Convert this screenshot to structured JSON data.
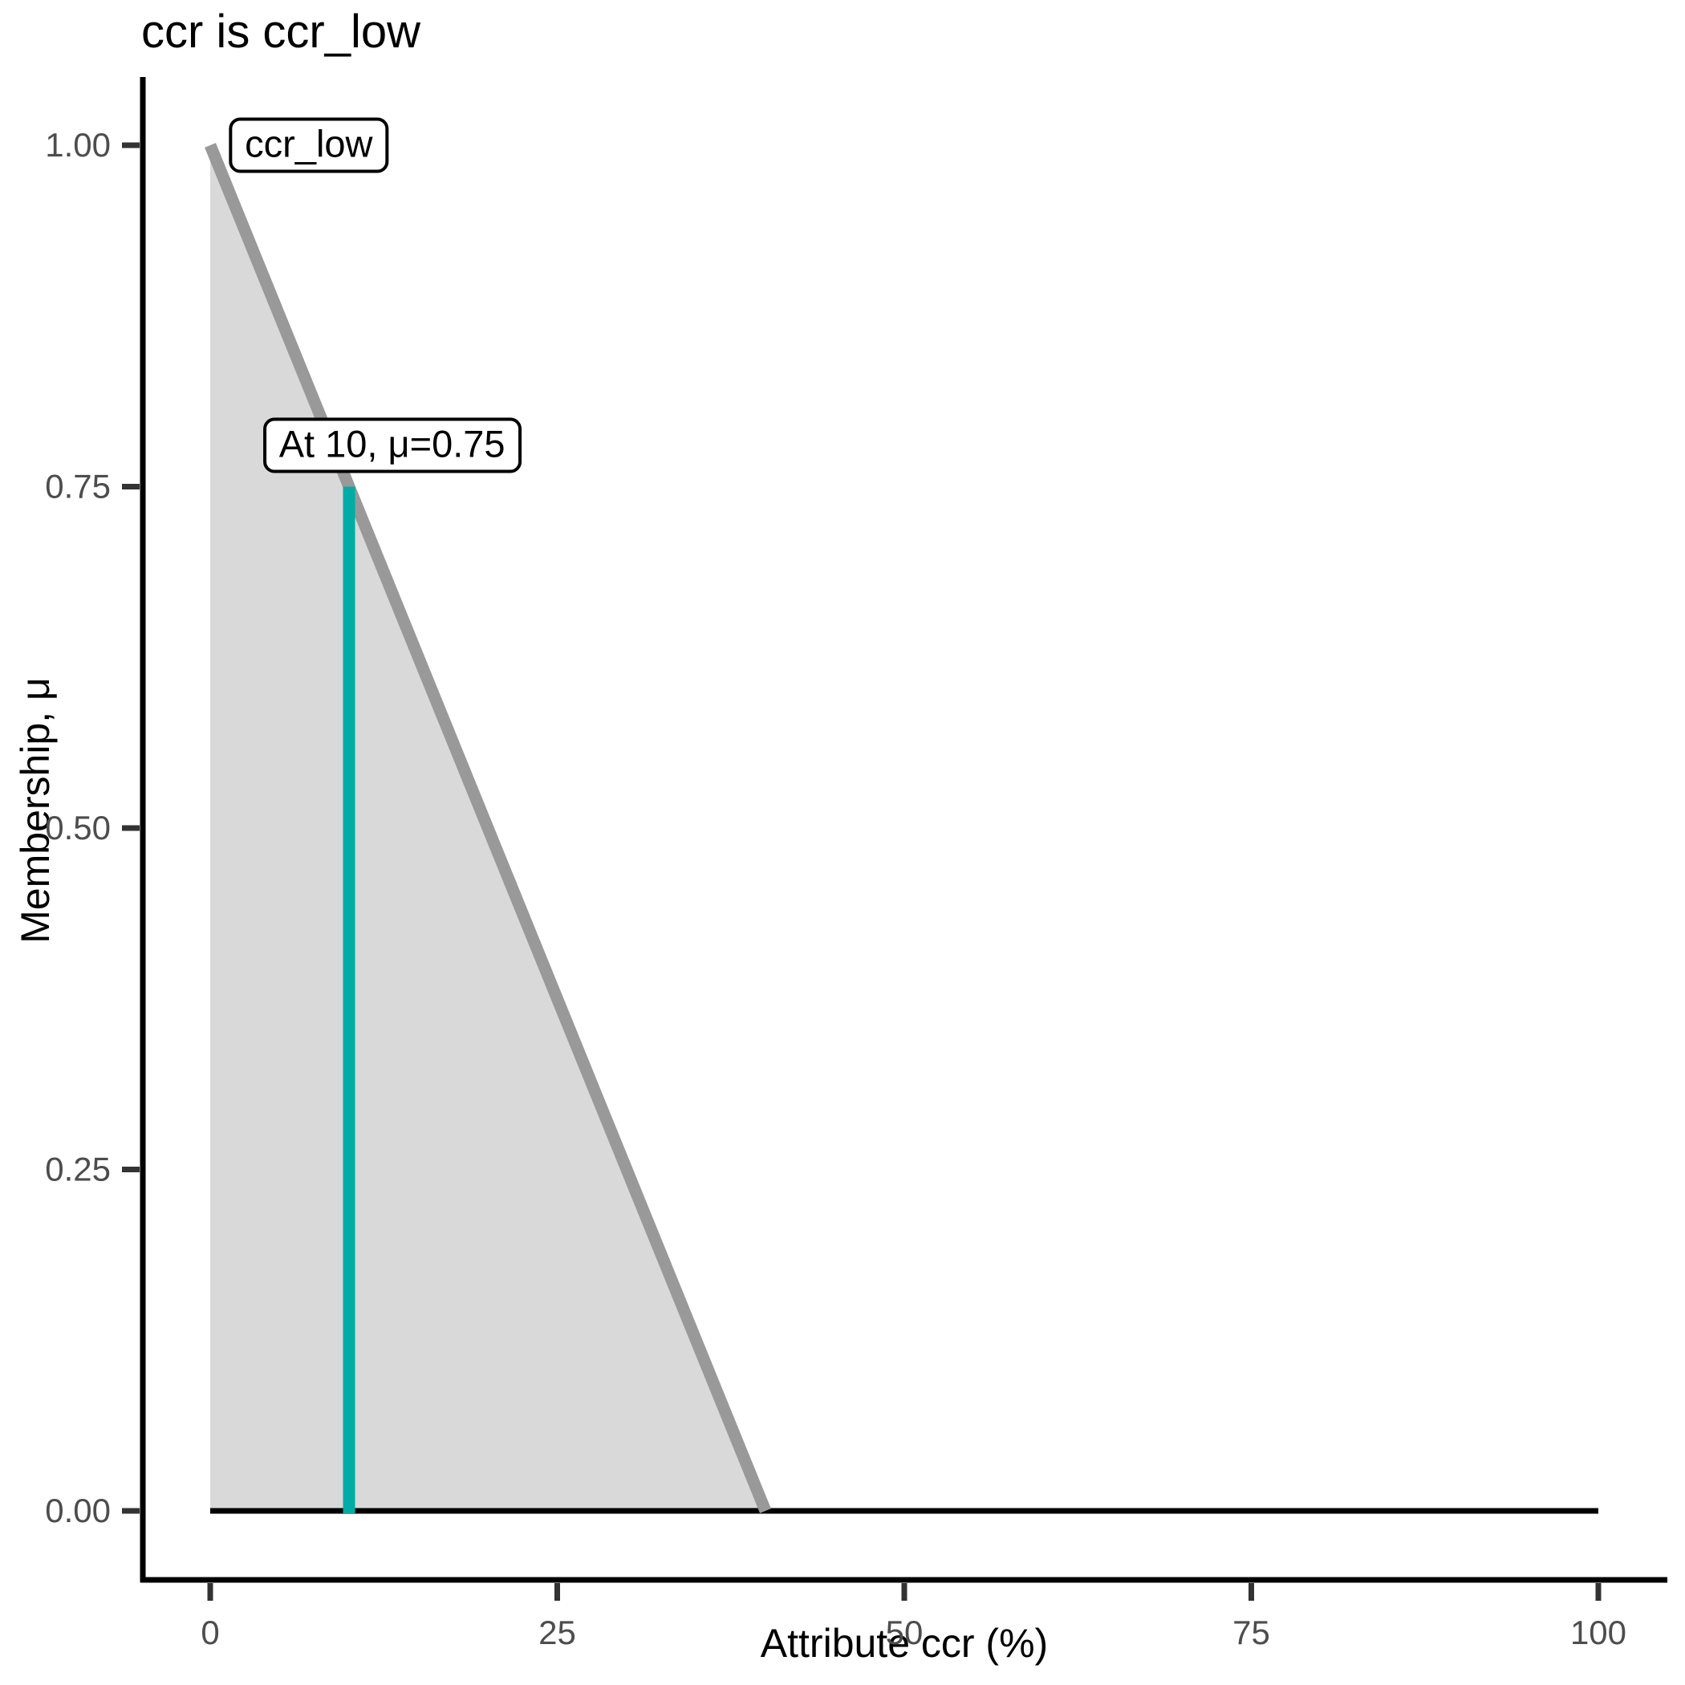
{
  "chart_data": {
    "type": "area",
    "title": "ccr is ccr_low",
    "xlabel": "Attribute ccr (%)",
    "ylabel": "Membership, μ",
    "xlim": [
      0,
      100
    ],
    "ylim": [
      0,
      1
    ],
    "grid": false,
    "legend": false,
    "xticks": {
      "values": [
        0,
        25,
        50,
        75,
        100
      ],
      "labels": [
        "0",
        "25",
        "50",
        "75",
        "100"
      ]
    },
    "yticks": {
      "values": [
        0,
        0.25,
        0.5,
        0.75,
        1
      ],
      "labels": [
        "0.00",
        "0.25",
        "0.50",
        "0.75",
        "1.00"
      ]
    },
    "membership_function": {
      "name": "ccr_low",
      "points": [
        [
          0,
          1
        ],
        [
          40,
          0
        ],
        [
          100,
          0
        ]
      ],
      "descending_segment": [
        [
          0,
          1
        ],
        [
          40,
          0
        ]
      ],
      "baseline_segment": [
        [
          0,
          0
        ],
        [
          100,
          0
        ]
      ],
      "fill_points": [
        [
          0,
          1
        ],
        [
          40,
          0
        ],
        [
          0,
          0
        ]
      ]
    },
    "indicator": {
      "x": 10,
      "mu": 0.75
    },
    "annotations": [
      {
        "text": "ccr_low",
        "x": 7.1,
        "y": 1.0
      },
      {
        "text": "At 10, μ=0.75",
        "x": 13.1,
        "y": 0.78
      }
    ],
    "colors": {
      "mf_line": "#999999",
      "mf_fill": "#D9D9D9",
      "baseline": "#000000",
      "indicator": "#00ACA5",
      "axis_line": "#000000",
      "tick_mark": "#333333",
      "tick_label": "#4D4D4D",
      "text": "#000000"
    }
  }
}
